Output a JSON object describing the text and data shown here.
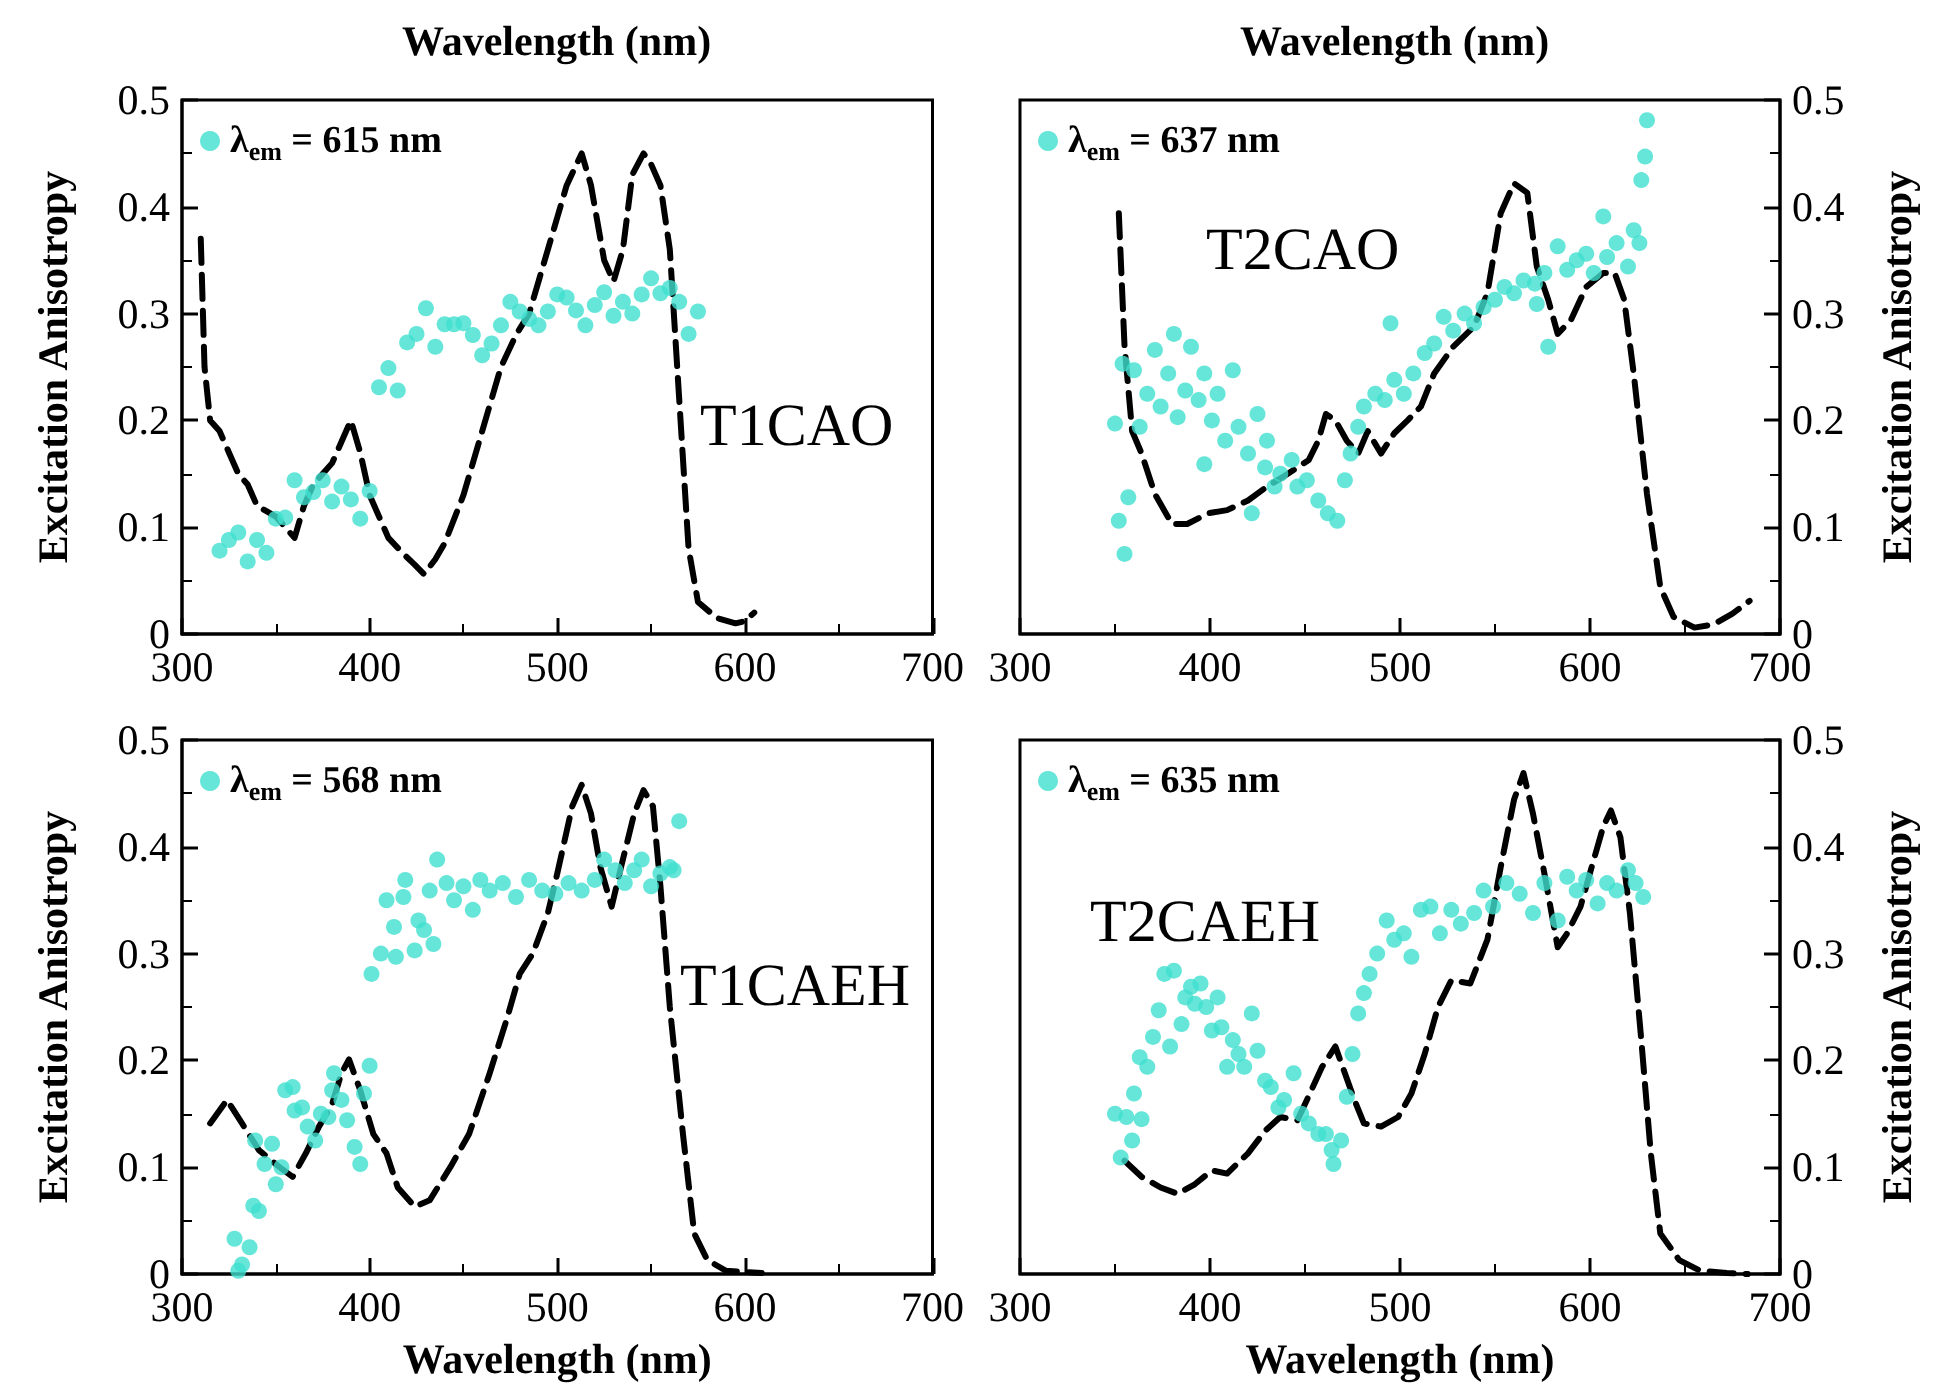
{
  "chart_data": [
    {
      "type": "scatter",
      "xlabel": "Wavelength (nm)",
      "ylabel": "Excitation Anisotropy",
      "xlim": [
        300,
        700
      ],
      "xticks": [
        300,
        400,
        500,
        600,
        700
      ],
      "ylim": [
        0,
        0.5
      ],
      "yticks": [
        0,
        0.1,
        0.2,
        0.3,
        0.4,
        0.5
      ],
      "legend": "top left",
      "annotations": [
        "T1CAO"
      ],
      "series": [
        {
          "type": "line",
          "color": "#000000",
          "line_style": "dashed",
          "marker": "none",
          "x": [
            310,
            312,
            315,
            320,
            325,
            330,
            335,
            340,
            345,
            350,
            355,
            360,
            365,
            370,
            375,
            380,
            385,
            390,
            395,
            400,
            405,
            410,
            418,
            424,
            429,
            435,
            440,
            450,
            460,
            470,
            478,
            485,
            490,
            500,
            505,
            513,
            518,
            525,
            530,
            535,
            540,
            546,
            550,
            555,
            560,
            565,
            570,
            575,
            585,
            595,
            600,
            605
          ],
          "values": [
            0.37,
            0.25,
            0.2,
            0.19,
            0.17,
            0.15,
            0.14,
            0.12,
            0.115,
            0.11,
            0.1,
            0.09,
            0.12,
            0.14,
            0.15,
            0.16,
            0.18,
            0.2,
            0.17,
            0.13,
            0.11,
            0.09,
            0.075,
            0.065,
            0.056,
            0.07,
            0.085,
            0.13,
            0.19,
            0.25,
            0.28,
            0.3,
            0.33,
            0.39,
            0.42,
            0.45,
            0.42,
            0.35,
            0.33,
            0.36,
            0.43,
            0.45,
            0.44,
            0.42,
            0.36,
            0.22,
            0.08,
            0.03,
            0.015,
            0.01,
            0.012,
            0.02
          ]
        },
        {
          "type": "scatter",
          "name": "λ$_{em}$ = 615 nm",
          "color": "#40e0d0",
          "marker": "circle",
          "x": [
            320,
            325,
            330,
            335,
            340,
            345,
            350,
            355,
            360,
            365,
            370,
            375,
            380,
            385,
            390,
            395,
            400,
            405,
            410,
            415,
            420,
            425,
            430,
            435,
            440,
            445,
            450,
            455,
            460,
            465,
            470,
            475,
            480,
            485,
            490,
            495,
            500,
            505,
            510,
            515,
            520,
            525,
            530,
            535,
            540,
            545,
            550,
            555,
            560,
            565,
            570,
            575
          ],
          "values": [
            0.078,
            0.088,
            0.095,
            0.068,
            0.088,
            0.076,
            0.108,
            0.109,
            0.144,
            0.128,
            0.133,
            0.144,
            0.124,
            0.138,
            0.126,
            0.108,
            0.134,
            0.231,
            0.249,
            0.228,
            0.273,
            0.281,
            0.305,
            0.269,
            0.29,
            0.29,
            0.291,
            0.28,
            0.261,
            0.272,
            0.289,
            0.311,
            0.302,
            0.295,
            0.289,
            0.302,
            0.318,
            0.315,
            0.303,
            0.289,
            0.308,
            0.32,
            0.298,
            0.311,
            0.3,
            0.318,
            0.333,
            0.319,
            0.324,
            0.311,
            0.281,
            0.302
          ]
        }
      ]
    },
    {
      "type": "scatter",
      "xlabel": "Wavelength (nm)",
      "ylabel": "Excitation Anisotropy",
      "xlim": [
        300,
        700
      ],
      "xticks": [
        300,
        400,
        500,
        600,
        700
      ],
      "ylim": [
        0,
        0.5
      ],
      "yticks": [
        0,
        0.1,
        0.2,
        0.3,
        0.4,
        0.5
      ],
      "legend": "top left",
      "annotations": [
        "T2CAO"
      ],
      "series": [
        {
          "type": "line",
          "color": "#000000",
          "line_style": "dashed",
          "marker": "none",
          "x": [
            352,
            355,
            359,
            364,
            371,
            380,
            388,
            399,
            409,
            420,
            430,
            441,
            452,
            457,
            461,
            466,
            472,
            478,
            483,
            490,
            497,
            504,
            511,
            518,
            528,
            539,
            546,
            553,
            560,
            567,
            572,
            578,
            583,
            590,
            598,
            607,
            613,
            618,
            623,
            630,
            637,
            644,
            655,
            665,
            675,
            684
          ],
          "values": [
            0.394,
            0.27,
            0.19,
            0.169,
            0.131,
            0.103,
            0.103,
            0.113,
            0.116,
            0.125,
            0.138,
            0.15,
            0.163,
            0.181,
            0.206,
            0.2,
            0.181,
            0.169,
            0.19,
            0.169,
            0.188,
            0.2,
            0.213,
            0.244,
            0.269,
            0.288,
            0.319,
            0.394,
            0.422,
            0.413,
            0.344,
            0.313,
            0.281,
            0.294,
            0.325,
            0.338,
            0.338,
            0.313,
            0.244,
            0.131,
            0.044,
            0.016,
            0.006,
            0.009,
            0.019,
            0.031
          ]
        },
        {
          "type": "scatter",
          "name": "λ$_{em}$ = 637 nm",
          "color": "#40e0d0",
          "marker": "circle",
          "x": [
            350,
            352,
            355,
            357,
            354,
            360,
            363,
            367,
            371,
            374,
            378,
            381,
            383,
            387,
            390,
            394,
            397,
            397,
            401,
            404,
            408,
            412,
            415,
            420,
            422,
            425,
            429,
            430,
            434,
            437,
            443,
            446,
            451,
            457,
            462,
            467,
            471,
            474,
            478,
            481,
            487,
            492,
            495,
            497,
            502,
            507,
            513,
            518,
            523,
            528,
            534,
            539,
            544,
            550,
            555,
            560,
            565,
            571,
            572,
            576,
            578,
            583,
            588,
            593,
            598,
            602,
            607,
            609,
            614,
            620,
            623,
            626,
            627,
            629,
            630
          ],
          "values": [
            0.197,
            0.106,
            0.075,
            0.128,
            0.253,
            0.247,
            0.194,
            0.225,
            0.266,
            0.213,
            0.244,
            0.281,
            0.203,
            0.228,
            0.269,
            0.219,
            0.244,
            0.159,
            0.2,
            0.225,
            0.181,
            0.247,
            0.194,
            0.169,
            0.113,
            0.206,
            0.156,
            0.181,
            0.138,
            0.15,
            0.163,
            0.138,
            0.144,
            0.125,
            0.113,
            0.106,
            0.144,
            0.169,
            0.194,
            0.213,
            0.225,
            0.219,
            0.291,
            0.238,
            0.225,
            0.244,
            0.263,
            0.272,
            0.297,
            0.284,
            0.3,
            0.291,
            0.306,
            0.313,
            0.325,
            0.319,
            0.331,
            0.328,
            0.309,
            0.338,
            0.269,
            0.363,
            0.341,
            0.35,
            0.356,
            0.338,
            0.391,
            0.353,
            0.366,
            0.344,
            0.378,
            0.366,
            0.425,
            0.447,
            0.481
          ]
        }
      ]
    },
    {
      "type": "scatter",
      "xlabel": "Wavelength (nm)",
      "ylabel": "Excitation Anisotropy",
      "xlim": [
        300,
        700
      ],
      "xticks": [
        300,
        400,
        500,
        600,
        700
      ],
      "ylim": [
        0,
        0.5
      ],
      "yticks": [
        0,
        0.1,
        0.2,
        0.3,
        0.4,
        0.5
      ],
      "legend": "top left",
      "annotations": [
        "T1CAEH"
      ],
      "series": [
        {
          "type": "line",
          "color": "#000000",
          "line_style": "dashed",
          "marker": "none",
          "x": [
            315,
            324,
            332,
            341,
            352,
            359,
            366,
            373,
            380,
            385,
            389,
            395,
            402,
            409,
            415,
            424,
            432,
            443,
            453,
            464,
            473,
            480,
            487,
            495,
            500,
            508,
            513,
            518,
            523,
            529,
            534,
            541,
            546,
            551,
            555,
            560,
            567,
            573,
            580,
            590,
            609
          ],
          "values": [
            0.141,
            0.163,
            0.141,
            0.116,
            0.1,
            0.091,
            0.113,
            0.138,
            0.159,
            0.188,
            0.201,
            0.172,
            0.131,
            0.113,
            0.081,
            0.063,
            0.069,
            0.1,
            0.131,
            0.188,
            0.238,
            0.281,
            0.3,
            0.338,
            0.375,
            0.438,
            0.458,
            0.431,
            0.381,
            0.344,
            0.381,
            0.431,
            0.453,
            0.438,
            0.363,
            0.25,
            0.131,
            0.038,
            0.013,
            0.003,
            0.001
          ]
        },
        {
          "type": "scatter",
          "name": "λ$_{em}$ = 568 nm",
          "color": "#40e0d0",
          "marker": "circle",
          "x": [
            328,
            330,
            332,
            336,
            338,
            341,
            339,
            344,
            348,
            350,
            353,
            355,
            359,
            360,
            364,
            367,
            371,
            374,
            378,
            380,
            381,
            385,
            388,
            392,
            395,
            397,
            400,
            401,
            406,
            409,
            413,
            414,
            418,
            419,
            424,
            426,
            429,
            432,
            434,
            436,
            441,
            445,
            450,
            455,
            459,
            464,
            471,
            478,
            485,
            492,
            499,
            506,
            513,
            520,
            525,
            531,
            536,
            541,
            545,
            550,
            555,
            560,
            562,
            565
          ],
          "values": [
            0.033,
            0.003,
            0.009,
            0.025,
            0.064,
            0.059,
            0.125,
            0.103,
            0.122,
            0.084,
            0.1,
            0.172,
            0.175,
            0.153,
            0.156,
            0.138,
            0.125,
            0.15,
            0.147,
            0.172,
            0.188,
            0.163,
            0.144,
            0.119,
            0.103,
            0.169,
            0.195,
            0.281,
            0.3,
            0.35,
            0.325,
            0.297,
            0.353,
            0.369,
            0.303,
            0.331,
            0.322,
            0.359,
            0.309,
            0.388,
            0.366,
            0.35,
            0.363,
            0.341,
            0.369,
            0.359,
            0.366,
            0.353,
            0.369,
            0.359,
            0.356,
            0.366,
            0.359,
            0.369,
            0.388,
            0.378,
            0.366,
            0.378,
            0.388,
            0.363,
            0.375,
            0.381,
            0.378,
            0.424
          ]
        }
      ]
    },
    {
      "type": "scatter",
      "xlabel": "Wavelength (nm)",
      "ylabel": "Excitation Anisotropy",
      "xlim": [
        300,
        700
      ],
      "xticks": [
        300,
        400,
        500,
        600,
        700
      ],
      "ylim": [
        0,
        0.5
      ],
      "yticks": [
        0,
        0.1,
        0.2,
        0.3,
        0.4,
        0.5
      ],
      "legend": "top left",
      "annotations": [
        "T2CAEH"
      ],
      "series": [
        {
          "type": "line",
          "color": "#000000",
          "line_style": "dashed",
          "marker": "none",
          "x": [
            355,
            364,
            374,
            383,
            392,
            401,
            409,
            420,
            429,
            437,
            446,
            451,
            459,
            466,
            471,
            476,
            481,
            490,
            499,
            506,
            513,
            520,
            527,
            537,
            546,
            553,
            560,
            565,
            570,
            576,
            583,
            588,
            595,
            602,
            607,
            611,
            616,
            621,
            627,
            632,
            637,
            647,
            658,
            672,
            683
          ],
          "values": [
            0.106,
            0.091,
            0.081,
            0.075,
            0.084,
            0.097,
            0.094,
            0.113,
            0.134,
            0.147,
            0.144,
            0.163,
            0.194,
            0.213,
            0.188,
            0.163,
            0.141,
            0.138,
            0.147,
            0.169,
            0.206,
            0.25,
            0.275,
            0.272,
            0.313,
            0.381,
            0.444,
            0.469,
            0.431,
            0.375,
            0.306,
            0.319,
            0.344,
            0.388,
            0.419,
            0.434,
            0.409,
            0.338,
            0.219,
            0.113,
            0.038,
            0.013,
            0.003,
            0.001,
            0
          ]
        },
        {
          "type": "scatter",
          "name": "λ$_{em}$ = 635 nm",
          "color": "#40e0d0",
          "marker": "circle",
          "x": [
            350,
            353,
            356,
            359,
            360,
            364,
            363,
            367,
            370,
            373,
            376,
            379,
            381,
            385,
            387,
            390,
            392,
            395,
            398,
            401,
            404,
            406,
            409,
            412,
            415,
            418,
            422,
            425,
            429,
            432,
            436,
            439,
            444,
            448,
            452,
            457,
            461,
            464,
            465,
            469,
            472,
            475,
            478,
            481,
            484,
            488,
            493,
            497,
            502,
            506,
            511,
            516,
            521,
            527,
            532,
            539,
            544,
            549,
            556,
            563,
            570,
            576,
            583,
            588,
            593,
            598,
            604,
            609,
            614,
            620,
            624,
            628
          ],
          "values": [
            0.15,
            0.109,
            0.147,
            0.125,
            0.169,
            0.145,
            0.203,
            0.194,
            0.222,
            0.247,
            0.281,
            0.213,
            0.284,
            0.234,
            0.259,
            0.269,
            0.253,
            0.272,
            0.25,
            0.228,
            0.259,
            0.231,
            0.194,
            0.219,
            0.206,
            0.194,
            0.244,
            0.209,
            0.181,
            0.175,
            0.156,
            0.163,
            0.188,
            0.15,
            0.141,
            0.131,
            0.131,
            0.116,
            0.103,
            0.125,
            0.166,
            0.206,
            0.244,
            0.263,
            0.281,
            0.3,
            0.331,
            0.313,
            0.319,
            0.297,
            0.341,
            0.344,
            0.319,
            0.341,
            0.328,
            0.338,
            0.359,
            0.344,
            0.366,
            0.356,
            0.338,
            0.366,
            0.331,
            0.372,
            0.359,
            0.369,
            0.347,
            0.366,
            0.359,
            0.378,
            0.366,
            0.353
          ]
        }
      ]
    }
  ]
}
